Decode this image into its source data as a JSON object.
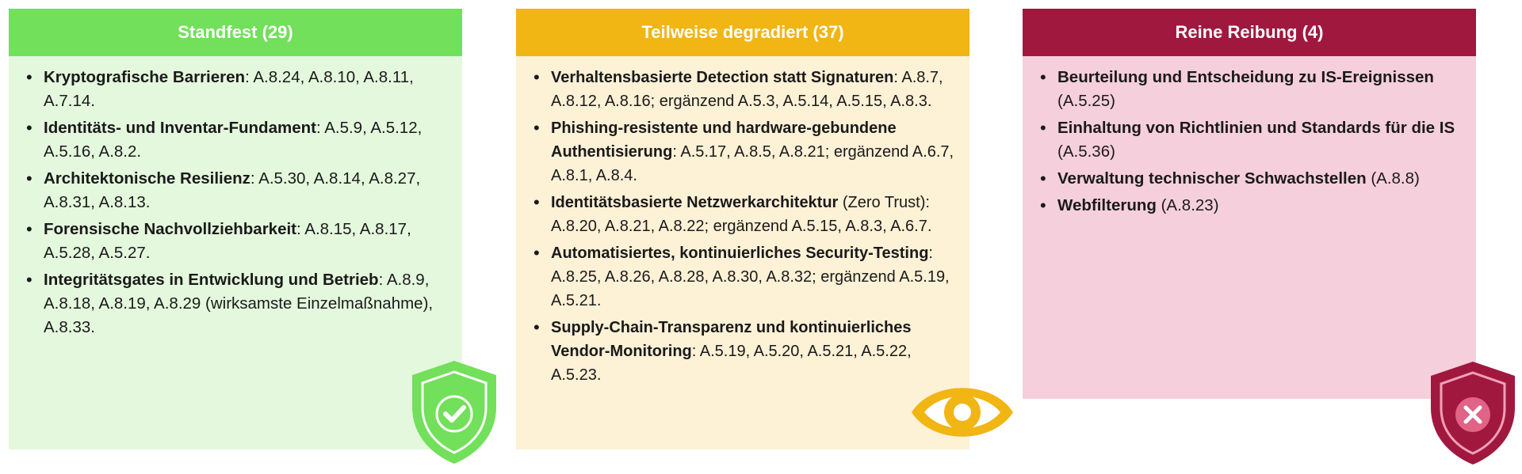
{
  "columns": [
    {
      "title": "Standfest (29)",
      "color": "#72e05a",
      "bg": "#e4f8dd",
      "icon": "shield-check-icon",
      "items": [
        {
          "term": "Kryptografische Barrieren",
          "refs": ": A.8.24, A.8.10, A.8.11, A.7.14."
        },
        {
          "term": "Identitäts- und Inventar-Fundament",
          "refs": ": A.5.9, A.5.12, A.5.16, A.8.2."
        },
        {
          "term": "Architektonische Resilienz",
          "refs": ": A.5.30, A.8.14, A.8.27, A.8.31, A.8.13."
        },
        {
          "term": "Forensische Nachvollziehbarkeit",
          "refs": ": A.8.15, A.8.17, A.5.28, A.5.27."
        },
        {
          "term": "Integritätsgates in Entwicklung und Betrieb",
          "refs": ": A.8.9, A.8.18, A.8.19, A.8.29 (wirksamste Einzelmaßnahme), A.8.33."
        }
      ]
    },
    {
      "title": "Teilweise degradiert (37)",
      "color": "#f1b514",
      "bg": "#fdf1d6",
      "icon": "eye-icon",
      "items": [
        {
          "term": "Verhaltensbasierte Detection statt Signaturen",
          "refs": ": A.8.7, A.8.12, A.8.16; ergänzend A.5.3, A.5.14, A.5.15, A.8.3."
        },
        {
          "term": "Phishing-resistente und hardware-gebundene Authentisierung",
          "refs": ": A.5.17, A.8.5, A.8.21; ergänzend A.6.7, A.8.1, A.8.4."
        },
        {
          "term": "Identitätsbasierte Netzwerkarchitektur",
          "refs": " (Zero Trust): A.8.20, A.8.21, A.8.22; ergänzend A.5.15, A.8.3, A.6.7."
        },
        {
          "term": "Automatisiertes, kontinuierliches Security-Testing",
          "refs": ": A.8.25, A.8.26, A.8.28, A.8.30, A.8.32; ergänzend A.5.19, A.5.21."
        },
        {
          "term": "Supply-Chain-Transparenz und kontinuierliches Vendor-Monitoring",
          "refs": ": A.5.19, A.5.20, A.5.21, A.5.22, A.5.23."
        }
      ]
    },
    {
      "title": "Reine Reibung (4)",
      "color": "#a1183f",
      "bg": "#f6cfdc",
      "icon": "shield-x-icon",
      "items": [
        {
          "term": "Beurteilung und Entscheidung zu IS-Ereignissen",
          "refs": " (A.5.25)"
        },
        {
          "term": "Einhaltung von Richtlinien und Standards für die IS",
          "refs": " (A.5.36)"
        },
        {
          "term": "Verwaltung technischer Schwachstellen",
          "refs": " (A.8.8)"
        },
        {
          "term": "Webfilterung",
          "refs": " (A.8.23)"
        }
      ]
    }
  ]
}
